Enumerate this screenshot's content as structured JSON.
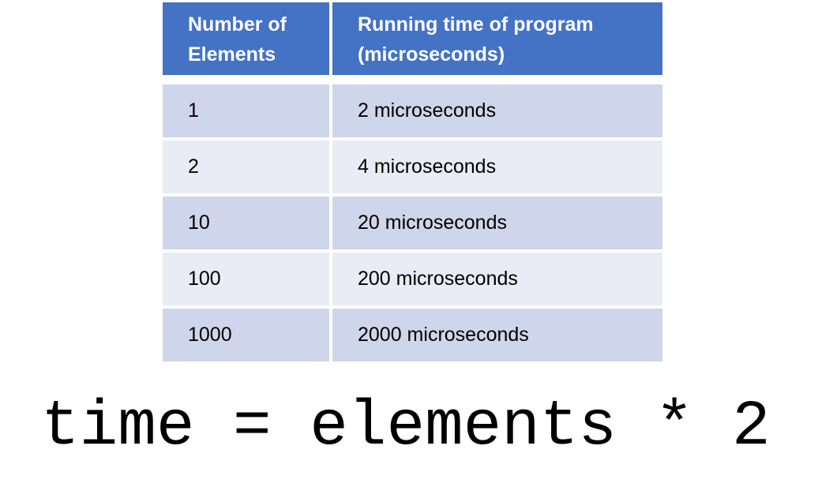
{
  "table": {
    "headers": [
      "Number of Elements",
      "Running time of program (microseconds)"
    ],
    "header_lines": [
      [
        "Number of",
        "Elements"
      ],
      [
        "Running time of program",
        "(microseconds)"
      ]
    ],
    "rows": [
      [
        "1",
        "2 microseconds"
      ],
      [
        "2",
        "4 microseconds"
      ],
      [
        "10",
        "20 microseconds"
      ],
      [
        "100",
        "200 microseconds"
      ],
      [
        "1000",
        "2000 microseconds"
      ]
    ]
  },
  "formula": "time = elements * 2",
  "colors": {
    "header_bg": "#4472c4",
    "row_odd_bg": "#cfd5ea",
    "row_even_bg": "#e9ebf5",
    "header_text": "#ffffff",
    "body_text": "#000000"
  }
}
